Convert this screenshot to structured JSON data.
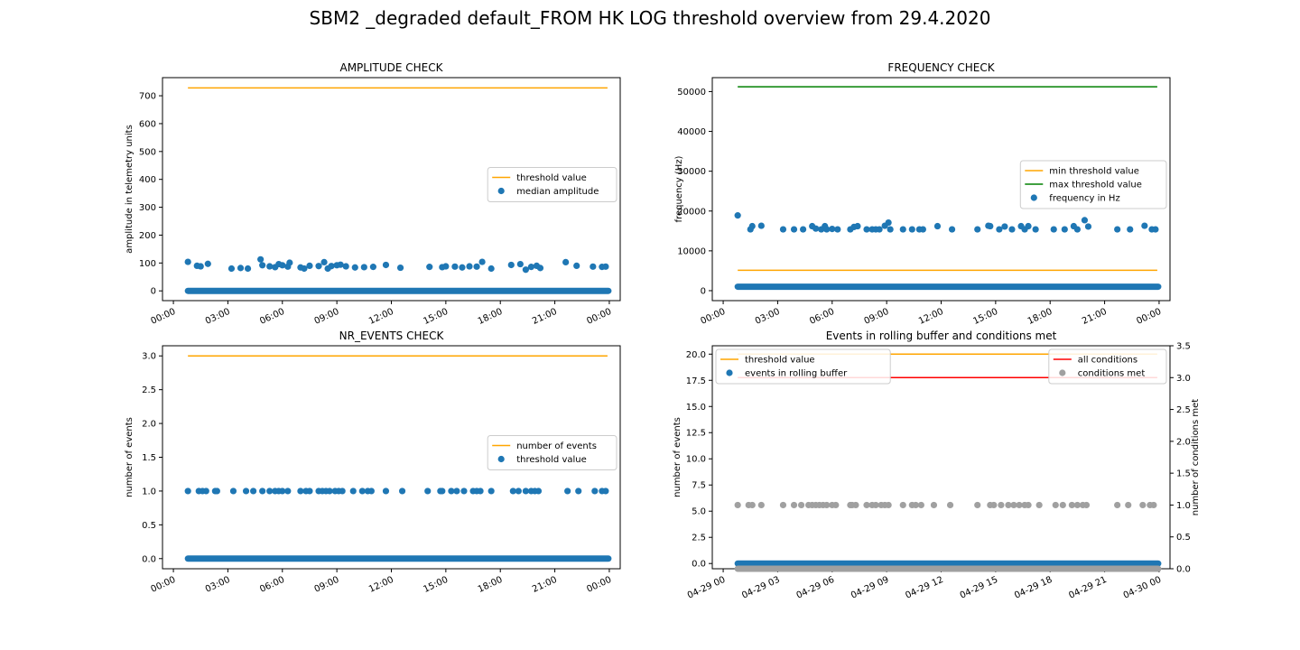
{
  "suptitle": "SBM2 _degraded default_FROM HK LOG threshold overview from 29.4.2020",
  "colors": {
    "series_blue": "#1f77b4",
    "threshold_orange": "#ffa500",
    "max_threshold_green": "#008000",
    "all_conditions_red": "#ff0000",
    "conditions_met_grey": "#a0a0a0"
  },
  "chart_data": [
    {
      "id": "amplitude",
      "type": "scatter",
      "title": "AMPLITUDE CHECK",
      "xlabel": "",
      "ylabel": "amplitude in telemetry units",
      "xlim": [
        -0.6,
        24.6
      ],
      "ylim": [
        -35,
        765
      ],
      "yticks": [
        0,
        100,
        200,
        300,
        400,
        500,
        600,
        700
      ],
      "ytick_labels": [
        "0",
        "100",
        "200",
        "300",
        "400",
        "500",
        "600",
        "700"
      ],
      "xticks": [
        0,
        3,
        6,
        9,
        12,
        15,
        18,
        21,
        24
      ],
      "xtick_labels": [
        "00:00",
        "03:00",
        "06:00",
        "09:00",
        "12:00",
        "15:00",
        "18:00",
        "21:00",
        "00:00"
      ],
      "legend_position": "center-right",
      "lines": [
        {
          "name": "threshold value",
          "color": "#ffa500",
          "x": [
            0.8,
            23.9
          ],
          "y": [
            728,
            728
          ]
        }
      ],
      "series": [
        {
          "name": "median amplitude",
          "color": "#1f77b4",
          "baseline": {
            "x_start": 0.8,
            "x_end": 23.95,
            "y": 0
          },
          "x": [
            0.8,
            1.3,
            1.5,
            1.9,
            3.2,
            3.7,
            4.1,
            4.8,
            4.9,
            5.3,
            5.6,
            5.8,
            6.0,
            6.3,
            6.4,
            7.0,
            7.2,
            7.5,
            8.0,
            8.3,
            8.5,
            8.7,
            9.0,
            9.2,
            9.5,
            10.0,
            10.5,
            11.0,
            11.7,
            12.5,
            14.1,
            14.8,
            15.0,
            15.5,
            15.9,
            16.3,
            16.7,
            17.0,
            17.5,
            18.6,
            19.1,
            19.4,
            19.7,
            20.0,
            20.2,
            21.6,
            22.2,
            23.1,
            23.6,
            23.8
          ],
          "y": [
            104,
            90,
            88,
            97,
            80,
            82,
            80,
            113,
            92,
            88,
            85,
            96,
            92,
            87,
            101,
            84,
            80,
            90,
            89,
            103,
            80,
            89,
            92,
            94,
            88,
            84,
            85,
            86,
            93,
            83,
            86,
            85,
            88,
            87,
            84,
            88,
            87,
            104,
            80,
            93,
            96,
            76,
            86,
            90,
            82,
            103,
            90,
            87,
            86,
            87
          ]
        }
      ]
    },
    {
      "id": "frequency",
      "type": "scatter",
      "title": "FREQUENCY CHECK",
      "xlabel": "",
      "ylabel": "frequency (Hz)",
      "xlim": [
        -0.6,
        24.6
      ],
      "ylim": [
        -2500,
        53500
      ],
      "yticks": [
        0,
        10000,
        20000,
        30000,
        40000,
        50000
      ],
      "ytick_labels": [
        "0",
        "10000",
        "20000",
        "30000",
        "40000",
        "50000"
      ],
      "xticks": [
        0,
        3,
        6,
        9,
        12,
        15,
        18,
        21,
        24
      ],
      "xtick_labels": [
        "00:00",
        "03:00",
        "06:00",
        "09:00",
        "12:00",
        "15:00",
        "18:00",
        "21:00",
        "00:00"
      ],
      "legend_position": "center-right",
      "lines": [
        {
          "name": "min threshold value",
          "color": "#ffa500",
          "x": [
            0.8,
            23.9
          ],
          "y": [
            5120,
            5120
          ]
        },
        {
          "name": "max threshold value",
          "color": "#008000",
          "x": [
            0.8,
            23.9
          ],
          "y": [
            51200,
            51200
          ]
        }
      ],
      "series": [
        {
          "name": "frequency in Hz",
          "color": "#1f77b4",
          "baseline": {
            "x_start": 0.8,
            "x_end": 23.95,
            "y": 1000
          },
          "x": [
            0.8,
            1.5,
            1.6,
            2.1,
            3.3,
            3.9,
            4.4,
            4.9,
            5.1,
            5.4,
            5.6,
            5.7,
            6.0,
            6.3,
            7.0,
            7.2,
            7.4,
            7.9,
            8.2,
            8.4,
            8.6,
            8.9,
            9.1,
            9.2,
            9.9,
            10.4,
            10.8,
            11.0,
            11.8,
            12.6,
            14.0,
            14.6,
            14.7,
            15.2,
            15.5,
            15.9,
            16.4,
            16.6,
            16.8,
            17.2,
            18.2,
            18.8,
            19.3,
            19.5,
            19.9,
            20.1,
            21.7,
            22.4,
            23.2,
            23.6,
            23.8
          ],
          "y": [
            18900,
            15400,
            16200,
            16300,
            15400,
            15400,
            15400,
            16200,
            15600,
            15400,
            16200,
            15400,
            15500,
            15400,
            15400,
            16000,
            16200,
            15400,
            15400,
            15400,
            15400,
            16300,
            17100,
            15400,
            15400,
            15400,
            15400,
            15400,
            16200,
            15400,
            15400,
            16300,
            16200,
            15400,
            16100,
            15400,
            16200,
            15400,
            16200,
            15400,
            15400,
            15400,
            16200,
            15400,
            17700,
            16100,
            15400,
            15400,
            16300,
            15400,
            15400
          ]
        }
      ]
    },
    {
      "id": "nr_events",
      "type": "scatter",
      "title": "NR_EVENTS CHECK",
      "xlabel": "",
      "ylabel": "number of events",
      "xlim": [
        -0.6,
        24.6
      ],
      "ylim": [
        -0.15,
        3.15
      ],
      "yticks": [
        0,
        0.5,
        1,
        1.5,
        2,
        2.5,
        3
      ],
      "ytick_labels": [
        "0.0",
        "0.5",
        "1.0",
        "1.5",
        "2.0",
        "2.5",
        "3.0"
      ],
      "xticks": [
        0,
        3,
        6,
        9,
        12,
        15,
        18,
        21,
        24
      ],
      "xtick_labels": [
        "00:00",
        "03:00",
        "06:00",
        "09:00",
        "12:00",
        "15:00",
        "18:00",
        "21:00",
        "00:00"
      ],
      "legend_position": "center-right",
      "lines": [
        {
          "name": "number of events",
          "color": "#ffa500",
          "x": [
            0.8,
            23.9
          ],
          "y": [
            3,
            3
          ]
        }
      ],
      "series": [
        {
          "name": "threshold value",
          "color": "#1f77b4",
          "baseline": {
            "x_start": 0.8,
            "x_end": 23.95,
            "y": 0
          },
          "x": [
            0.8,
            1.4,
            1.6,
            1.8,
            2.3,
            2.4,
            3.3,
            4.0,
            4.4,
            4.9,
            5.3,
            5.6,
            5.8,
            6.0,
            6.3,
            7.0,
            7.3,
            7.5,
            8.0,
            8.2,
            8.4,
            8.6,
            8.9,
            9.1,
            9.3,
            9.9,
            10.4,
            10.7,
            10.9,
            11.7,
            12.6,
            14.0,
            14.7,
            14.8,
            15.3,
            15.6,
            16.0,
            16.5,
            16.7,
            16.9,
            17.5,
            18.7,
            19.0,
            19.4,
            19.7,
            19.9,
            20.1,
            21.7,
            22.3,
            23.2,
            23.6,
            23.8
          ],
          "y": [
            1,
            1,
            1,
            1,
            1,
            1,
            1,
            1,
            1,
            1,
            1,
            1,
            1,
            1,
            1,
            1,
            1,
            1,
            1,
            1,
            1,
            1,
            1,
            1,
            1,
            1,
            1,
            1,
            1,
            1,
            1,
            1,
            1,
            1,
            1,
            1,
            1,
            1,
            1,
            1,
            1,
            1,
            1,
            1,
            1,
            1,
            1,
            1,
            1,
            1,
            1,
            1
          ]
        }
      ]
    },
    {
      "id": "rolling_buffer",
      "type": "scatter",
      "title": "Events in rolling buffer and conditions met",
      "xlabel": "",
      "ylabel": "number of events",
      "ylabel_right": "number of conditions met",
      "xlim": [
        -0.6,
        24.6
      ],
      "ylim": [
        -0.5,
        20.8
      ],
      "ylim_right": [
        0,
        3.5
      ],
      "yticks": [
        0,
        2.5,
        5,
        7.5,
        10,
        12.5,
        15,
        17.5,
        20
      ],
      "ytick_labels": [
        "0.0",
        "2.5",
        "5.0",
        "7.5",
        "10.0",
        "12.5",
        "15.0",
        "17.5",
        "20.0"
      ],
      "yticks_right": [
        0,
        0.5,
        1,
        1.5,
        2,
        2.5,
        3,
        3.5
      ],
      "ytick_labels_right": [
        "0.0",
        "0.5",
        "1.0",
        "1.5",
        "2.0",
        "2.5",
        "3.0",
        "3.5"
      ],
      "xticks": [
        0,
        3,
        6,
        9,
        12,
        15,
        18,
        21,
        24
      ],
      "xtick_labels": [
        "04-29 00",
        "04-29 03",
        "04-29 06",
        "04-29 09",
        "04-29 12",
        "04-29 15",
        "04-29 18",
        "04-29 21",
        "04-30 00"
      ],
      "legend_position": "upper-left",
      "legend_position_right": "upper-right",
      "lines": [
        {
          "name": "threshold value",
          "color": "#ffa500",
          "x": [
            0.8,
            23.9
          ],
          "y": [
            20,
            20
          ],
          "axis": "left",
          "legend": "left"
        },
        {
          "name": "all conditions",
          "color": "#ff0000",
          "x": [
            0.8,
            23.9
          ],
          "y": [
            3,
            3
          ],
          "axis": "right",
          "legend": "right"
        }
      ],
      "series": [
        {
          "name": "events in rolling buffer",
          "color": "#1f77b4",
          "axis": "left",
          "legend": "left",
          "baseline": {
            "x_start": 0.8,
            "x_end": 23.95,
            "y": 0
          },
          "x": [],
          "y": []
        },
        {
          "name": "conditions met",
          "color": "#a0a0a0",
          "axis": "right",
          "legend": "right",
          "baseline": {
            "x_start": 0.8,
            "x_end": 23.95,
            "y": 0
          },
          "x": [
            0.8,
            1.4,
            1.6,
            2.1,
            3.3,
            3.9,
            4.3,
            4.7,
            4.9,
            5.1,
            5.3,
            5.5,
            5.7,
            6.0,
            6.2,
            7.0,
            7.1,
            7.3,
            7.9,
            8.2,
            8.4,
            8.7,
            8.9,
            9.1,
            9.9,
            10.4,
            10.6,
            10.9,
            11.6,
            12.5,
            14.0,
            14.7,
            14.9,
            15.3,
            15.7,
            16.0,
            16.3,
            16.6,
            16.8,
            17.4,
            18.3,
            18.7,
            19.2,
            19.5,
            19.8,
            20.0,
            21.7,
            22.3,
            23.1,
            23.5,
            23.7
          ],
          "y": [
            1,
            1,
            1,
            1,
            1,
            1,
            1,
            1,
            1,
            1,
            1,
            1,
            1,
            1,
            1,
            1,
            1,
            1,
            1,
            1,
            1,
            1,
            1,
            1,
            1,
            1,
            1,
            1,
            1,
            1,
            1,
            1,
            1,
            1,
            1,
            1,
            1,
            1,
            1,
            1,
            1,
            1,
            1,
            1,
            1,
            1,
            1,
            1,
            1,
            1,
            1
          ]
        }
      ]
    }
  ]
}
